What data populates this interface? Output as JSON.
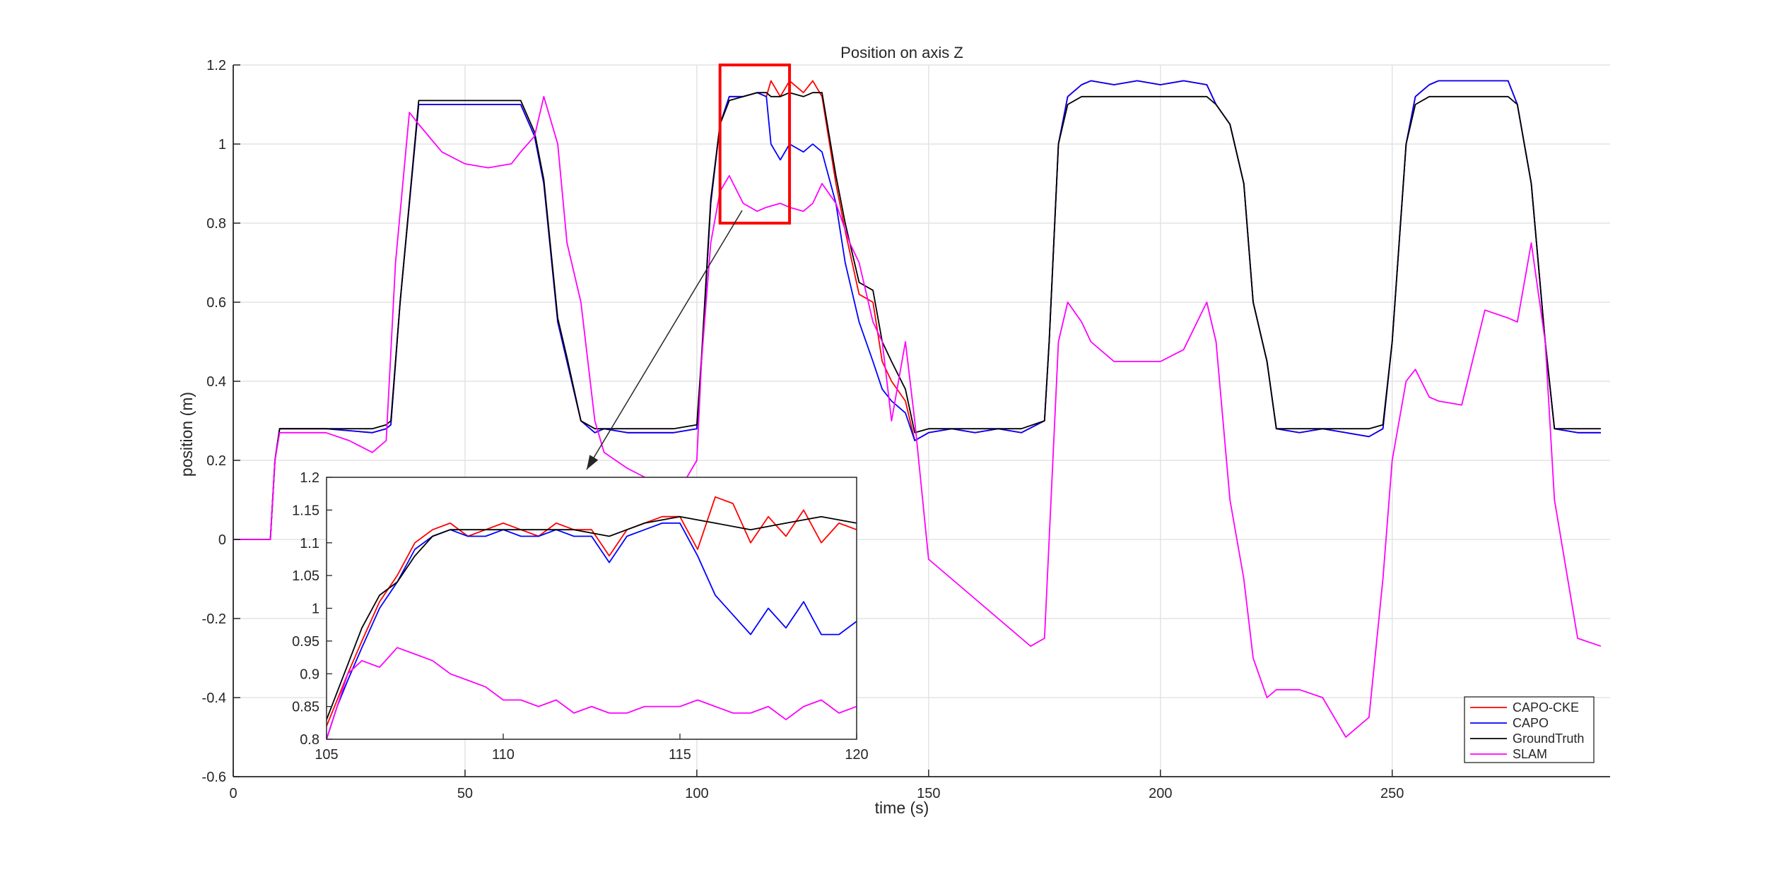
{
  "chart_data": {
    "type": "line",
    "title": "Position on axis Z",
    "xlabel": "time (s)",
    "ylabel": "position (m)",
    "xlim": [
      0,
      297
    ],
    "ylim": [
      -0.6,
      1.2
    ],
    "xticks": [
      0,
      50,
      100,
      150,
      200,
      250
    ],
    "yticks": [
      -0.6,
      -0.4,
      -0.2,
      0,
      0.2,
      0.4,
      0.6,
      0.8,
      1,
      1.2
    ],
    "ytick_labels": [
      "-0.6",
      "-0.4",
      "-0.2",
      "0",
      "0.2",
      "0.4",
      "0.6",
      "0.8",
      "1",
      "1.2"
    ],
    "grid": true,
    "legend_position": "bottom-right",
    "series": [
      {
        "name": "CAPO-CKE",
        "color": "#ff0000",
        "x": [
          0,
          8,
          9,
          10,
          20,
          30,
          33,
          34,
          36,
          40,
          45,
          50,
          55,
          60,
          62,
          65,
          67,
          70,
          72,
          75,
          78,
          80,
          85,
          90,
          95,
          100,
          101,
          103,
          105,
          107,
          110,
          113,
          115,
          116,
          118,
          120,
          123,
          125,
          127,
          130,
          132,
          135,
          138,
          140,
          142,
          145,
          147,
          150,
          155,
          160,
          165,
          170,
          175,
          176,
          178,
          180,
          183,
          185,
          190,
          195,
          200,
          205,
          210,
          212,
          215,
          218,
          220,
          223,
          225,
          230,
          235,
          240,
          245,
          248,
          250,
          253,
          255,
          258,
          260,
          265,
          270,
          275,
          277,
          280,
          283,
          285,
          290,
          295
        ],
        "y": [
          0,
          0,
          0.2,
          0.28,
          0.28,
          0.27,
          0.28,
          0.29,
          0.6,
          1.1,
          1.1,
          1.1,
          1.1,
          1.1,
          1.1,
          1.02,
          0.9,
          0.55,
          0.45,
          0.3,
          0.27,
          0.28,
          0.27,
          0.27,
          0.27,
          0.28,
          0.45,
          0.85,
          1.05,
          1.12,
          1.12,
          1.13,
          1.12,
          1.16,
          1.12,
          1.16,
          1.13,
          1.16,
          1.12,
          0.9,
          0.78,
          0.62,
          0.6,
          0.45,
          0.4,
          0.35,
          0.25,
          0.27,
          0.28,
          0.27,
          0.28,
          0.27,
          0.3,
          0.5,
          1.0,
          1.12,
          1.15,
          1.16,
          1.15,
          1.16,
          1.15,
          1.16,
          1.15,
          1.1,
          1.05,
          0.9,
          0.6,
          0.45,
          0.28,
          0.27,
          0.28,
          0.27,
          0.26,
          0.28,
          0.5,
          1.0,
          1.12,
          1.15,
          1.16,
          1.16,
          1.16,
          1.16,
          1.1,
          0.9,
          0.5,
          0.28,
          0.27,
          0.27
        ]
      },
      {
        "name": "CAPO",
        "color": "#0000ff",
        "x": [
          0,
          8,
          9,
          10,
          20,
          30,
          33,
          34,
          36,
          40,
          45,
          50,
          55,
          60,
          62,
          65,
          67,
          70,
          72,
          75,
          78,
          80,
          85,
          90,
          95,
          100,
          101,
          103,
          105,
          107,
          110,
          113,
          115,
          116,
          118,
          120,
          123,
          125,
          127,
          130,
          132,
          135,
          138,
          140,
          142,
          145,
          147,
          150,
          155,
          160,
          165,
          170,
          175,
          176,
          178,
          180,
          183,
          185,
          190,
          195,
          200,
          205,
          210,
          212,
          215,
          218,
          220,
          223,
          225,
          230,
          235,
          240,
          245,
          248,
          250,
          253,
          255,
          258,
          260,
          265,
          270,
          275,
          277,
          280,
          283,
          285,
          290,
          295
        ],
        "y": [
          0,
          0,
          0.2,
          0.28,
          0.28,
          0.27,
          0.28,
          0.29,
          0.6,
          1.1,
          1.1,
          1.1,
          1.1,
          1.1,
          1.1,
          1.02,
          0.9,
          0.55,
          0.45,
          0.3,
          0.27,
          0.28,
          0.27,
          0.27,
          0.27,
          0.28,
          0.45,
          0.85,
          1.05,
          1.12,
          1.12,
          1.13,
          1.12,
          1.0,
          0.96,
          1.0,
          0.98,
          1.0,
          0.98,
          0.85,
          0.7,
          0.55,
          0.45,
          0.38,
          0.35,
          0.32,
          0.25,
          0.27,
          0.28,
          0.27,
          0.28,
          0.27,
          0.3,
          0.5,
          1.0,
          1.12,
          1.15,
          1.16,
          1.15,
          1.16,
          1.15,
          1.16,
          1.15,
          1.1,
          1.05,
          0.9,
          0.6,
          0.45,
          0.28,
          0.27,
          0.28,
          0.27,
          0.26,
          0.28,
          0.5,
          1.0,
          1.12,
          1.15,
          1.16,
          1.16,
          1.16,
          1.16,
          1.1,
          0.9,
          0.5,
          0.28,
          0.27,
          0.27
        ]
      },
      {
        "name": "GroundTruth",
        "color": "#000000",
        "x": [
          0,
          8,
          9,
          10,
          20,
          30,
          33,
          34,
          36,
          40,
          45,
          50,
          55,
          60,
          62,
          65,
          67,
          70,
          72,
          75,
          78,
          80,
          85,
          90,
          95,
          100,
          101,
          103,
          105,
          107,
          110,
          113,
          115,
          116,
          118,
          120,
          123,
          125,
          127,
          130,
          132,
          135,
          138,
          140,
          142,
          145,
          147,
          150,
          155,
          160,
          165,
          170,
          175,
          176,
          178,
          180,
          183,
          185,
          190,
          195,
          200,
          205,
          210,
          212,
          215,
          218,
          220,
          223,
          225,
          230,
          235,
          240,
          245,
          248,
          250,
          253,
          255,
          258,
          260,
          265,
          270,
          275,
          277,
          280,
          283,
          285,
          290,
          295
        ],
        "y": [
          0,
          0,
          0.2,
          0.28,
          0.28,
          0.28,
          0.29,
          0.3,
          0.6,
          1.11,
          1.11,
          1.11,
          1.11,
          1.11,
          1.11,
          1.03,
          0.91,
          0.56,
          0.46,
          0.3,
          0.28,
          0.28,
          0.28,
          0.28,
          0.28,
          0.29,
          0.46,
          0.86,
          1.05,
          1.11,
          1.12,
          1.13,
          1.13,
          1.12,
          1.12,
          1.13,
          1.12,
          1.13,
          1.13,
          0.92,
          0.8,
          0.65,
          0.63,
          0.5,
          0.45,
          0.38,
          0.27,
          0.28,
          0.28,
          0.28,
          0.28,
          0.28,
          0.3,
          0.5,
          1.0,
          1.1,
          1.12,
          1.12,
          1.12,
          1.12,
          1.12,
          1.12,
          1.12,
          1.1,
          1.05,
          0.9,
          0.6,
          0.45,
          0.28,
          0.28,
          0.28,
          0.28,
          0.28,
          0.29,
          0.5,
          1.0,
          1.1,
          1.12,
          1.12,
          1.12,
          1.12,
          1.12,
          1.1,
          0.9,
          0.5,
          0.28,
          0.28,
          0.28
        ]
      },
      {
        "name": "SLAM",
        "color": "#ff00ff",
        "x": [
          0,
          8,
          9,
          10,
          20,
          25,
          30,
          33,
          35,
          38,
          40,
          45,
          50,
          55,
          60,
          62,
          65,
          67,
          70,
          72,
          75,
          78,
          80,
          85,
          90,
          95,
          100,
          101,
          103,
          105,
          107,
          110,
          113,
          115,
          118,
          120,
          123,
          125,
          127,
          130,
          133,
          135,
          138,
          140,
          142,
          145,
          147,
          150,
          155,
          160,
          165,
          170,
          172,
          175,
          176,
          178,
          180,
          183,
          185,
          190,
          195,
          200,
          205,
          210,
          212,
          215,
          218,
          220,
          223,
          225,
          230,
          235,
          240,
          245,
          248,
          250,
          253,
          255,
          258,
          260,
          265,
          270,
          275,
          277,
          280,
          283,
          285,
          290,
          295
        ],
        "y": [
          0,
          0,
          0.2,
          0.27,
          0.27,
          0.25,
          0.22,
          0.25,
          0.7,
          1.08,
          1.05,
          0.98,
          0.95,
          0.94,
          0.95,
          0.98,
          1.02,
          1.12,
          1.0,
          0.75,
          0.6,
          0.3,
          0.22,
          0.18,
          0.15,
          0.1,
          0.2,
          0.45,
          0.75,
          0.88,
          0.92,
          0.85,
          0.83,
          0.84,
          0.85,
          0.84,
          0.83,
          0.85,
          0.9,
          0.85,
          0.75,
          0.7,
          0.55,
          0.5,
          0.3,
          0.5,
          0.3,
          -0.05,
          -0.1,
          -0.15,
          -0.2,
          -0.25,
          -0.27,
          -0.25,
          0.0,
          0.5,
          0.6,
          0.55,
          0.5,
          0.45,
          0.45,
          0.45,
          0.48,
          0.6,
          0.5,
          0.1,
          -0.1,
          -0.3,
          -0.4,
          -0.38,
          -0.38,
          -0.4,
          -0.5,
          -0.45,
          -0.1,
          0.2,
          0.4,
          0.43,
          0.36,
          0.35,
          0.34,
          0.58,
          0.56,
          0.55,
          0.75,
          0.5,
          0.1,
          -0.25,
          -0.27
        ]
      }
    ],
    "highlight_box": {
      "xlim": [
        105,
        120
      ],
      "ylim": [
        0.8,
        1.2
      ]
    },
    "inset": {
      "xlim": [
        105,
        120
      ],
      "ylim": [
        0.8,
        1.2
      ],
      "xticks": [
        105,
        110,
        115,
        120
      ],
      "yticks": [
        0.8,
        0.85,
        0.9,
        0.95,
        1,
        1.05,
        1.1,
        1.15,
        1.2
      ],
      "ytick_labels": [
        "0.8",
        "0.85",
        "0.9",
        "0.95",
        "1",
        "1.05",
        "1.1",
        "1.15",
        "1.2"
      ],
      "series": [
        {
          "name": "CAPO-CKE",
          "color": "#ff0000",
          "x": [
            105.0,
            105.3,
            105.6,
            106.0,
            106.5,
            107.0,
            107.5,
            108.0,
            108.5,
            109.0,
            109.5,
            110.0,
            110.5,
            111.0,
            111.5,
            112.0,
            112.5,
            113.0,
            113.5,
            114.0,
            114.5,
            115.0,
            115.5,
            116.0,
            116.5,
            117.0,
            117.5,
            118.0,
            118.5,
            119.0,
            119.5,
            120.0
          ],
          "y": [
            0.82,
            0.86,
            0.9,
            0.95,
            1.01,
            1.05,
            1.1,
            1.12,
            1.13,
            1.11,
            1.12,
            1.13,
            1.12,
            1.11,
            1.13,
            1.12,
            1.12,
            1.08,
            1.12,
            1.13,
            1.14,
            1.14,
            1.09,
            1.17,
            1.16,
            1.1,
            1.14,
            1.11,
            1.15,
            1.1,
            1.13,
            1.12
          ]
        },
        {
          "name": "CAPO",
          "color": "#0000ff",
          "x": [
            105.0,
            105.3,
            105.6,
            106.0,
            106.5,
            107.0,
            107.5,
            108.0,
            108.5,
            109.0,
            109.5,
            110.0,
            110.5,
            111.0,
            111.5,
            112.0,
            112.5,
            113.0,
            113.5,
            114.0,
            114.5,
            115.0,
            115.5,
            116.0,
            116.5,
            117.0,
            117.5,
            118.0,
            118.5,
            119.0,
            119.5,
            120.0
          ],
          "y": [
            0.8,
            0.85,
            0.89,
            0.94,
            1.0,
            1.04,
            1.09,
            1.11,
            1.12,
            1.11,
            1.11,
            1.12,
            1.11,
            1.11,
            1.12,
            1.11,
            1.11,
            1.07,
            1.11,
            1.12,
            1.13,
            1.13,
            1.08,
            1.02,
            0.99,
            0.96,
            1.0,
            0.97,
            1.01,
            0.96,
            0.96,
            0.98
          ]
        },
        {
          "name": "GroundTruth",
          "color": "#000000",
          "x": [
            105.0,
            105.5,
            106.0,
            106.5,
            107.0,
            107.5,
            108.0,
            108.5,
            109.0,
            110.0,
            111.0,
            112.0,
            113.0,
            114.0,
            115.0,
            116.0,
            117.0,
            118.0,
            119.0,
            120.0
          ],
          "y": [
            0.83,
            0.9,
            0.97,
            1.02,
            1.04,
            1.08,
            1.11,
            1.12,
            1.12,
            1.12,
            1.12,
            1.12,
            1.11,
            1.13,
            1.14,
            1.13,
            1.12,
            1.13,
            1.14,
            1.13
          ]
        },
        {
          "name": "SLAM",
          "color": "#ff00ff",
          "x": [
            105.0,
            105.3,
            105.6,
            106.0,
            106.5,
            107.0,
            107.5,
            108.0,
            108.5,
            109.0,
            109.5,
            110.0,
            110.5,
            111.0,
            111.5,
            112.0,
            112.5,
            113.0,
            113.5,
            114.0,
            114.5,
            115.0,
            115.5,
            116.0,
            116.5,
            117.0,
            117.5,
            118.0,
            118.5,
            119.0,
            119.5,
            120.0
          ],
          "y": [
            0.8,
            0.85,
            0.9,
            0.92,
            0.91,
            0.94,
            0.93,
            0.92,
            0.9,
            0.89,
            0.88,
            0.86,
            0.86,
            0.85,
            0.86,
            0.84,
            0.85,
            0.84,
            0.84,
            0.85,
            0.85,
            0.85,
            0.86,
            0.85,
            0.84,
            0.84,
            0.85,
            0.83,
            0.85,
            0.86,
            0.84,
            0.85
          ]
        }
      ]
    }
  }
}
